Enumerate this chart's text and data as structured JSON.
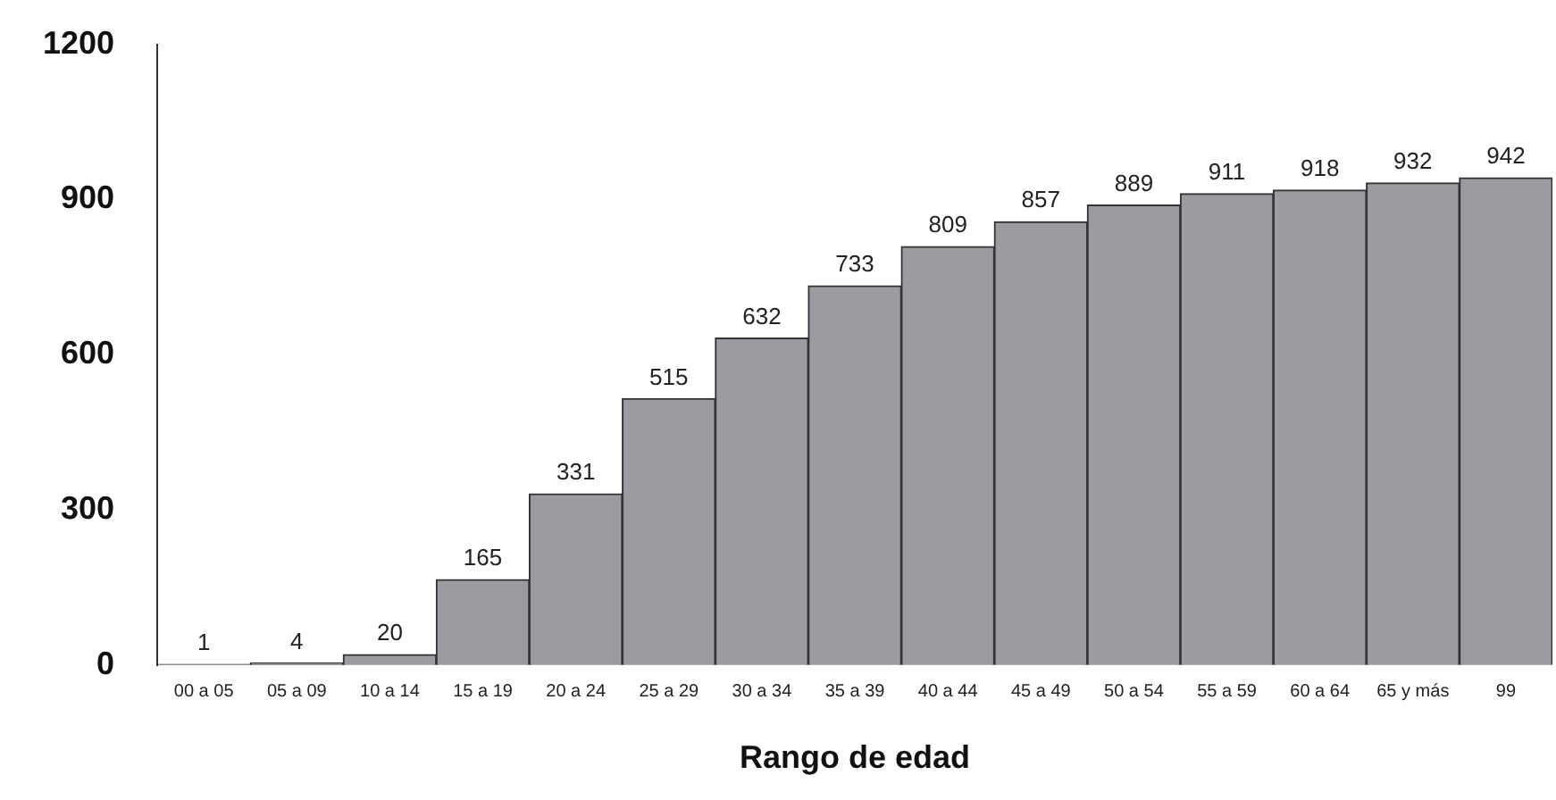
{
  "chart_data": {
    "type": "bar",
    "xlabel": "Rango de edad",
    "categories": [
      "00 a 05",
      "05 a 09",
      "10 a 14",
      "15 a 19",
      "20 a 24",
      "25 a 29",
      "30 a 34",
      "35 a 39",
      "40 a 44",
      "45 a 49",
      "50 a 54",
      "55 a 59",
      "60 a 64",
      "65 y más",
      "99"
    ],
    "values": [
      1,
      4,
      20,
      165,
      331,
      515,
      632,
      733,
      809,
      857,
      889,
      911,
      918,
      932,
      942
    ],
    "color": "#9b9ba1",
    "ylim": [
      0,
      1200
    ],
    "yticks": [
      0,
      300,
      600,
      900,
      1200
    ],
    "grid": false,
    "legend": false,
    "data_labels": true
  }
}
